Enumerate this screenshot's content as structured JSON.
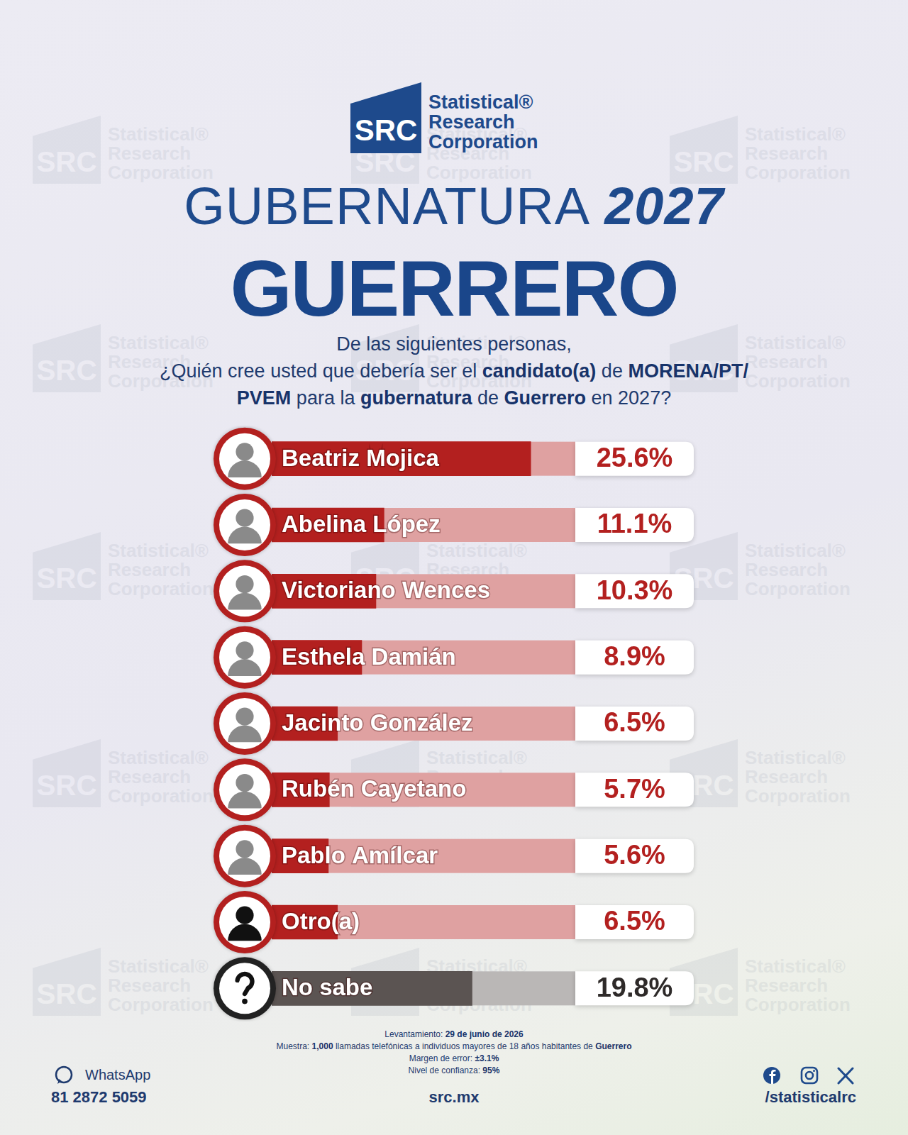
{
  "header": {
    "logo": {
      "mark": "SRC",
      "lines": [
        "Statistical®",
        "Research",
        "Corporation"
      ]
    },
    "title": {
      "light": "GUBERNATURA",
      "bold": "2027"
    },
    "state": "GUERRERO",
    "question": [
      [
        "De las siguientes personas,"
      ],
      [
        "¿Quién cree usted que debería ser el ",
        {
          "bold": "candidato(a)"
        },
        " de ",
        {
          "bold": "MORENA/PT/"
        }
      ],
      [
        {
          "bold": "PVEM"
        },
        " para la ",
        {
          "bold": "gubernatura"
        },
        " de ",
        {
          "bold": "Guerrero"
        },
        " en 2027?"
      ]
    ]
  },
  "chart_data": {
    "type": "bar",
    "orientation": "horizontal",
    "categories": [
      "Beatriz Mojica",
      "Abelina López",
      "Victoriano Wences",
      "Esthela Damián",
      "Jacinto González",
      "Rubén Cayetano",
      "Pablo Amílcar",
      "Otro(a)",
      "No sabe"
    ],
    "values": [
      25.6,
      11.1,
      10.3,
      8.9,
      6.5,
      5.7,
      5.6,
      6.5,
      19.8
    ],
    "value_labels": [
      "25.6%",
      "11.1%",
      "10.3%",
      "8.9%",
      "6.5%",
      "5.7%",
      "5.6%",
      "6.5%",
      "19.8%"
    ],
    "colors": [
      "#b3201f",
      "#b3201f",
      "#b3201f",
      "#b3201f",
      "#b3201f",
      "#b3201f",
      "#b3201f",
      "#b3201f",
      "#5b5452"
    ],
    "xlim": [
      0,
      30
    ],
    "data_labels": true,
    "tick_labels": false,
    "grid": false
  },
  "footer": {
    "notes": [
      [
        "Levantamiento: ",
        {
          "bold": "29 de junio de 2026"
        }
      ],
      [
        "Muestra: ",
        {
          "bold": "1,000"
        },
        " llamadas telefónicas a individuos mayores de 18 años habitantes de ",
        {
          "bold": "Guerrero"
        }
      ],
      [
        "Margen de error: ",
        {
          "bold": "±3.1%"
        }
      ],
      [
        "Nivel de confianza: ",
        {
          "bold": "95%"
        }
      ]
    ],
    "whatsapp_label": "WhatsApp",
    "phone": "81 2872 5059",
    "website": "src.mx",
    "social_handle": "/statisticalrc"
  }
}
